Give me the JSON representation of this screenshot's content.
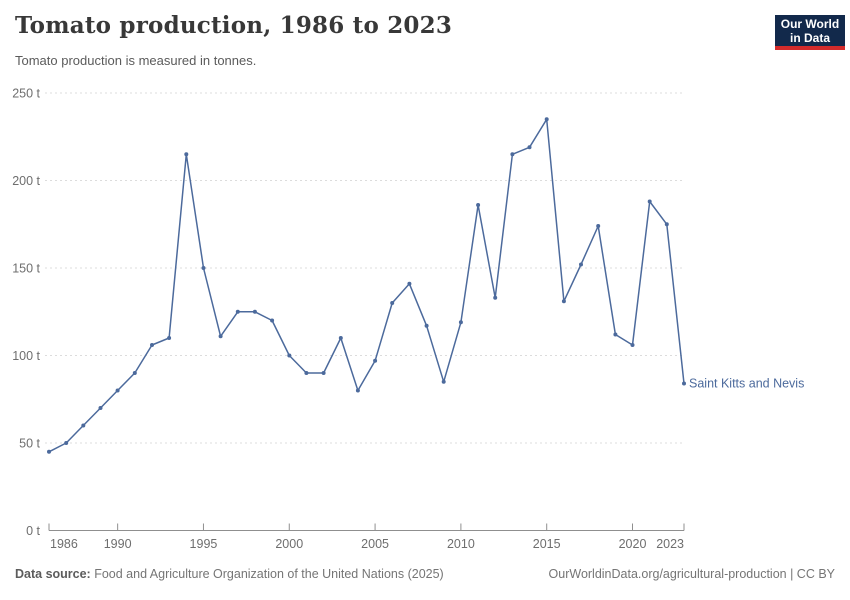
{
  "header": {
    "title": "Tomato production, 1986 to 2023",
    "subtitle": "Tomato production is measured in tonnes."
  },
  "logo": {
    "line1": "Our World",
    "line2": "in Data",
    "bg_color": "#12294B",
    "stripe_color": "#D42B2B"
  },
  "chart_data": {
    "type": "line",
    "title": "Tomato production, 1986 to 2023",
    "ylabel": "",
    "xlabel": "",
    "unit": "tonnes",
    "ytick_suffix": " t",
    "x": [
      1986,
      1987,
      1988,
      1989,
      1990,
      1991,
      1992,
      1993,
      1994,
      1995,
      1996,
      1997,
      1998,
      1999,
      2000,
      2001,
      2002,
      2003,
      2004,
      2005,
      2006,
      2007,
      2008,
      2009,
      2010,
      2011,
      2012,
      2013,
      2014,
      2015,
      2016,
      2017,
      2018,
      2019,
      2020,
      2021,
      2022,
      2023
    ],
    "series": [
      {
        "name": "Saint Kitts and Nevis",
        "color": "#4C6A9C",
        "values": [
          45,
          50,
          60,
          70,
          80,
          90,
          106,
          110,
          215,
          150,
          111,
          125,
          125,
          120,
          100,
          90,
          90,
          110,
          80,
          97,
          130,
          141,
          117,
          85,
          119,
          186,
          133,
          215,
          219,
          235,
          131,
          152,
          174,
          112,
          106,
          188,
          175,
          84
        ]
      }
    ],
    "ylim": [
      0,
      250
    ],
    "yticks": [
      0,
      50,
      100,
      150,
      200,
      250
    ],
    "xticks": [
      1986,
      1990,
      1995,
      2000,
      2005,
      2010,
      2015,
      2020,
      2023
    ],
    "grid": "horizontal-dashed",
    "legend": "end-of-line-label"
  },
  "footer": {
    "source_label": "Data source:",
    "source_text": " Food and Agriculture Organization of the United Nations (2025)",
    "credit": "OurWorldinData.org/agricultural-production | CC BY"
  },
  "colors": {
    "line": "#4C6A9C",
    "grid": "#DCDCDC",
    "axis": "#8F8F8F",
    "tick_label": "#6E6E6E",
    "title": "#383838",
    "subtitle": "#5B5B5B"
  }
}
